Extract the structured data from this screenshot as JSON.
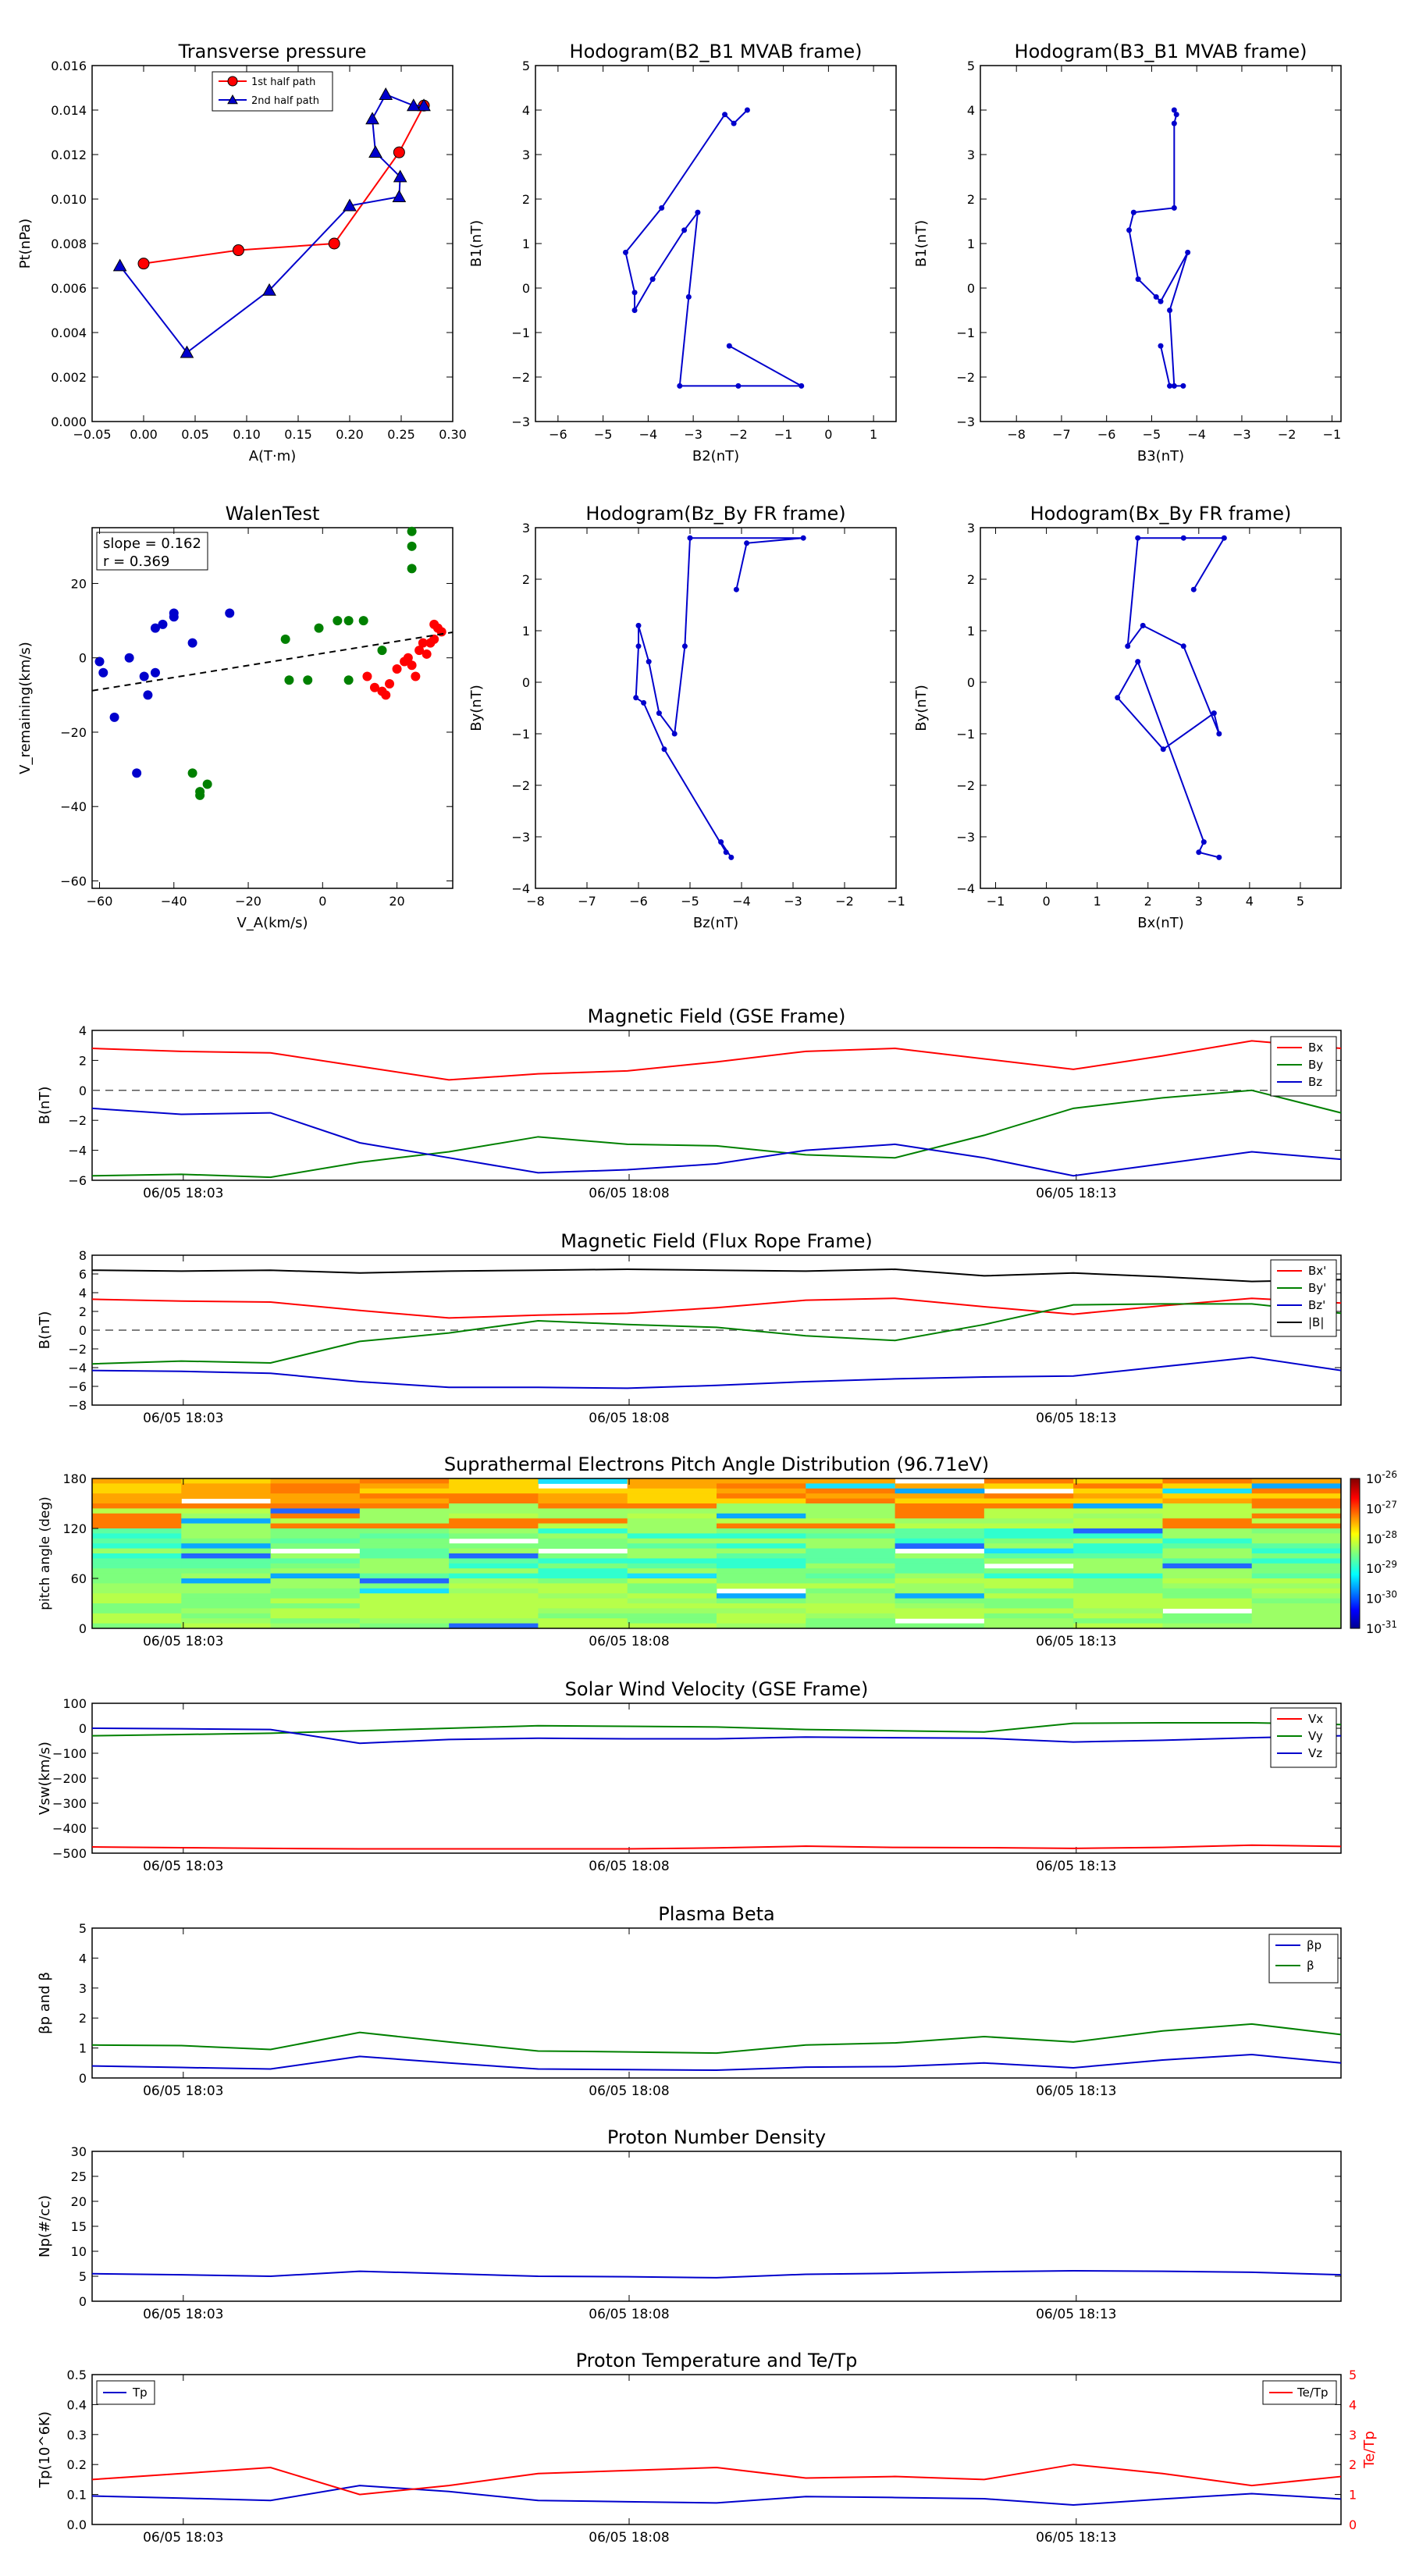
{
  "time_ticks": [
    "06/05 18:03",
    "06/05 18:08",
    "06/05 18:13"
  ],
  "colorbar": {
    "labels": [
      "10-26",
      "10-27",
      "10-28",
      "10-29",
      "10-30",
      "10-31"
    ],
    "display": [
      [
        "10",
        "-26"
      ],
      [
        "10",
        "-27"
      ],
      [
        "10",
        "-28"
      ],
      [
        "10",
        "-29"
      ],
      [
        "10",
        "-30"
      ],
      [
        "10",
        "-31"
      ]
    ]
  },
  "chart_data": [
    {
      "type": "line",
      "title": "Transverse pressure",
      "xlabel": "A(T·m)",
      "ylabel": "Pt(nPa)",
      "xlim": [
        -0.05,
        0.3
      ],
      "ylim": [
        0,
        0.016
      ],
      "xticks": [
        "−0.05",
        "0.00",
        "0.05",
        "0.10",
        "0.15",
        "0.20",
        "0.25",
        "0.30"
      ],
      "yticks": [
        "0.000",
        "0.002",
        "0.004",
        "0.006",
        "0.008",
        "0.010",
        "0.012",
        "0.014",
        "0.016"
      ],
      "legend": "top-center",
      "series": [
        {
          "name": "1st half path",
          "color": "#ff0000",
          "marker": "circle",
          "x": [
            0.0,
            0.092,
            0.185,
            0.248,
            0.272
          ],
          "y": [
            0.0071,
            0.0077,
            0.008,
            0.0121,
            0.0142
          ]
        },
        {
          "name": "2nd half path",
          "color": "#0000cc",
          "marker": "triangle",
          "x": [
            0.272,
            0.262,
            0.235,
            0.222,
            0.225,
            0.249,
            0.248,
            0.2,
            0.122,
            0.042,
            -0.023
          ],
          "y": [
            0.0142,
            0.0142,
            0.0147,
            0.0136,
            0.0121,
            0.011,
            0.0101,
            0.0097,
            0.0059,
            0.0031,
            0.007
          ]
        }
      ]
    },
    {
      "type": "line",
      "title": "Hodogram(B2_B1 MVAB frame)",
      "xlabel": "B2(nT)",
      "ylabel": "B1(nT)",
      "xlim": [
        -6.5,
        1.5
      ],
      "ylim": [
        -3,
        5
      ],
      "xticks": [
        "−6",
        "−5",
        "−4",
        "−3",
        "−2",
        "−1",
        "0",
        "1"
      ],
      "yticks": [
        "−3",
        "−2",
        "−1",
        "0",
        "1",
        "2",
        "3",
        "4",
        "5"
      ],
      "series": [
        {
          "name": "",
          "color": "#0000cc",
          "x": [
            -1.8,
            -2.1,
            -2.3,
            -3.7,
            -4.5,
            -4.3,
            -4.3,
            -3.9,
            -3.2,
            -2.9,
            -3.1,
            -3.3,
            -2.0,
            -0.6,
            -2.2
          ],
          "y": [
            4.0,
            3.7,
            3.9,
            1.8,
            0.8,
            -0.1,
            -0.5,
            0.2,
            1.3,
            1.7,
            -0.2,
            -2.2,
            -2.2,
            -2.2,
            -1.3
          ]
        }
      ]
    },
    {
      "type": "line",
      "title": "Hodogram(B3_B1 MVAB frame)",
      "xlabel": "B3(nT)",
      "ylabel": "B1(nT)",
      "xlim": [
        -8.8,
        -0.8
      ],
      "ylim": [
        -3,
        5
      ],
      "xticks": [
        "−8",
        "−7",
        "−6",
        "−5",
        "−4",
        "−3",
        "−2",
        "−1"
      ],
      "yticks": [
        "−3",
        "−2",
        "−1",
        "0",
        "1",
        "2",
        "3",
        "4",
        "5"
      ],
      "series": [
        {
          "name": "",
          "color": "#0000cc",
          "x": [
            -4.5,
            -4.45,
            -4.5,
            -4.5,
            -5.4,
            -5.5,
            -5.3,
            -4.9,
            -4.8,
            -4.2,
            -4.6,
            -4.5,
            -4.3,
            -4.6,
            -4.8
          ],
          "y": [
            4.0,
            3.9,
            3.7,
            1.8,
            1.7,
            1.3,
            0.2,
            -0.2,
            -0.3,
            0.8,
            -0.5,
            -2.2,
            -2.2,
            -2.2,
            -1.3
          ]
        }
      ]
    },
    {
      "type": "scatter",
      "title": "WalenTest",
      "xlabel": "V_A(km/s)",
      "ylabel": "V_remaining(km/s)",
      "xlim": [
        -62,
        35
      ],
      "ylim": [
        -62,
        35
      ],
      "xticks": [
        "−60",
        "−40",
        "−20",
        "0",
        "20"
      ],
      "yticks": [
        "−60",
        "−40",
        "−20",
        "0",
        "20"
      ],
      "annotation": [
        "slope = 0.162",
        "r = 0.369"
      ],
      "fit": {
        "slope": 0.162,
        "intercept": 1.2
      },
      "series": [
        {
          "name": "",
          "color": "#0000cc",
          "x": [
            -60,
            -59,
            -56,
            -52,
            -50,
            -48,
            -47,
            -45,
            -45,
            -43,
            -40,
            -40,
            -35,
            -25
          ],
          "y": [
            -1,
            -4,
            -16,
            0,
            -31,
            -5,
            -10,
            -4,
            8,
            9,
            12,
            11,
            4,
            12
          ]
        },
        {
          "name": "",
          "color": "#008000",
          "x": [
            -35,
            -33,
            -33,
            -31,
            -10,
            -9,
            -4,
            -1,
            4,
            7,
            7,
            11,
            16,
            24,
            24,
            24
          ],
          "y": [
            -31,
            -37,
            -36,
            -34,
            5,
            -6,
            -6,
            8,
            10,
            -6,
            10,
            10,
            2,
            34,
            30,
            24
          ]
        },
        {
          "name": "",
          "color": "#ff0000",
          "x": [
            12,
            14,
            16,
            17,
            18,
            20,
            22,
            23,
            24,
            25,
            26,
            27,
            28,
            29,
            30,
            30,
            31,
            32
          ],
          "y": [
            -5,
            -8,
            -9,
            -10,
            -7,
            -3,
            -1,
            0,
            -2,
            -5,
            2,
            4,
            1,
            4,
            5,
            9,
            8,
            7
          ]
        }
      ]
    },
    {
      "type": "line",
      "title": "Hodogram(Bz_By FR frame)",
      "xlabel": "Bz(nT)",
      "ylabel": "By(nT)",
      "xlim": [
        -8,
        -1
      ],
      "ylim": [
        -4,
        3
      ],
      "xticks": [
        "−8",
        "−7",
        "−6",
        "−5",
        "−4",
        "−3",
        "−2",
        "−1"
      ],
      "yticks": [
        "−4",
        "−3",
        "−2",
        "−1",
        "0",
        "1",
        "2",
        "3"
      ],
      "series": [
        {
          "name": "",
          "color": "#0000cc",
          "x": [
            -4.1,
            -3.9,
            -2.8,
            -5.0,
            -5.1,
            -5.3,
            -5.6,
            -5.8,
            -6.0,
            -6.0,
            -6.05,
            -5.9,
            -5.5,
            -4.3,
            -4.4,
            -4.2
          ],
          "y": [
            1.8,
            2.7,
            2.8,
            2.8,
            0.7,
            -1.0,
            -0.6,
            0.4,
            1.1,
            0.7,
            -0.3,
            -0.4,
            -1.3,
            -3.3,
            -3.1,
            -3.4
          ]
        }
      ]
    },
    {
      "type": "line",
      "title": "Hodogram(Bx_By FR frame)",
      "xlabel": "Bx(nT)",
      "ylabel": "By(nT)",
      "xlim": [
        -1.3,
        5.8
      ],
      "ylim": [
        -4,
        3
      ],
      "xticks": [
        "−1",
        "0",
        "1",
        "2",
        "3",
        "4",
        "5"
      ],
      "yticks": [
        "−4",
        "−3",
        "−2",
        "−1",
        "0",
        "1",
        "2",
        "3"
      ],
      "series": [
        {
          "name": "",
          "color": "#0000cc",
          "x": [
            2.9,
            3.5,
            2.7,
            1.8,
            1.6,
            1.9,
            2.7,
            3.4,
            3.3,
            2.3,
            1.4,
            1.8,
            3.1,
            3.0,
            3.4
          ],
          "y": [
            1.8,
            2.8,
            2.8,
            2.8,
            0.7,
            1.1,
            0.7,
            -1.0,
            -0.6,
            -1.3,
            -0.3,
            0.4,
            -3.1,
            -3.3,
            -3.4
          ]
        }
      ]
    },
    {
      "type": "line",
      "title": "Magnetic Field (GSE Frame)",
      "ylabel": "B(nT)",
      "ylim": [
        -6,
        4
      ],
      "yticks": [
        "−6",
        "−4",
        "−2",
        "0",
        "2",
        "4"
      ],
      "dashed_zero": true,
      "legend": "top-right",
      "series": [
        {
          "name": "Bx",
          "color": "#ff0000",
          "values": [
            2.8,
            2.6,
            2.5,
            1.6,
            0.7,
            1.1,
            1.3,
            1.9,
            2.6,
            2.8,
            2.1,
            1.4,
            2.3,
            3.3,
            2.8
          ]
        },
        {
          "name": "By",
          "color": "#008000",
          "values": [
            -5.7,
            -5.6,
            -5.8,
            -4.8,
            -4.1,
            -3.1,
            -3.6,
            -3.7,
            -4.3,
            -4.5,
            -3.0,
            -1.2,
            -0.5,
            0.0,
            -1.5
          ]
        },
        {
          "name": "Bz",
          "color": "#0000cc",
          "values": [
            -1.2,
            -1.6,
            -1.5,
            -3.5,
            -4.5,
            -5.5,
            -5.3,
            -4.9,
            -4.0,
            -3.6,
            -4.5,
            -5.7,
            -4.9,
            -4.1,
            -4.6
          ]
        }
      ]
    },
    {
      "type": "line",
      "title": "Magnetic Field (Flux Rope Frame)",
      "ylabel": "B(nT)",
      "ylim": [
        -8,
        8
      ],
      "yticks": [
        "−8",
        "−6",
        "−4",
        "−2",
        "0",
        "2",
        "4",
        "6",
        "8"
      ],
      "dashed_zero": true,
      "legend": "top-right",
      "series": [
        {
          "name": "Bx'",
          "color": "#ff0000",
          "values": [
            3.3,
            3.1,
            3.0,
            2.1,
            1.3,
            1.6,
            1.8,
            2.4,
            3.2,
            3.4,
            2.5,
            1.7,
            2.6,
            3.4,
            2.9
          ]
        },
        {
          "name": "By'",
          "color": "#008000",
          "values": [
            -3.6,
            -3.3,
            -3.5,
            -1.2,
            -0.3,
            1.0,
            0.6,
            0.3,
            -0.6,
            -1.1,
            0.6,
            2.7,
            2.8,
            2.8,
            1.8
          ]
        },
        {
          "name": "Bz'",
          "color": "#0000cc",
          "values": [
            -4.3,
            -4.4,
            -4.6,
            -5.5,
            -6.1,
            -6.1,
            -6.2,
            -5.9,
            -5.5,
            -5.2,
            -5.0,
            -4.9,
            -3.9,
            -2.9,
            -4.3
          ]
        },
        {
          "name": "|B|",
          "color": "#000000",
          "values": [
            6.4,
            6.3,
            6.4,
            6.1,
            6.3,
            6.4,
            6.5,
            6.4,
            6.3,
            6.5,
            5.8,
            6.1,
            5.7,
            5.2,
            5.4
          ]
        }
      ]
    },
    {
      "type": "heatmap",
      "title": "Suprathermal Electrons Pitch Angle Distribution (96.71eV)",
      "ylabel": "pitch angle (deg)",
      "ylim": [
        0,
        180
      ],
      "yticks": [
        "0",
        "60",
        "120",
        "180"
      ],
      "colorscale": "log",
      "color_range": [
        "1e-31",
        "1e-26"
      ]
    },
    {
      "type": "line",
      "title": "Solar Wind Velocity (GSE Frame)",
      "ylabel": "Vsw(km/s)",
      "ylim": [
        -500,
        100
      ],
      "yticks": [
        "−500",
        "−400",
        "−300",
        "−200",
        "−100",
        "0",
        "100"
      ],
      "legend": "top-right",
      "series": [
        {
          "name": "Vx",
          "color": "#ff0000",
          "values": [
            -475,
            -478,
            -481,
            -483,
            -483,
            -483,
            -483,
            -479,
            -472,
            -477,
            -478,
            -481,
            -477,
            -468,
            -473
          ]
        },
        {
          "name": "Vy",
          "color": "#008000",
          "values": [
            -30,
            -25,
            -20,
            -10,
            0,
            10,
            8,
            5,
            -5,
            -10,
            -15,
            20,
            22,
            22,
            15
          ]
        },
        {
          "name": "Vz",
          "color": "#0000cc",
          "values": [
            0,
            -2,
            -5,
            -60,
            -45,
            -40,
            -42,
            -42,
            -35,
            -38,
            -40,
            -55,
            -48,
            -38,
            -30
          ]
        }
      ]
    },
    {
      "type": "line",
      "title": "Plasma Beta",
      "ylabel": "βp and β",
      "ylim": [
        0,
        5
      ],
      "yticks": [
        "0",
        "1",
        "2",
        "3",
        "4",
        "5"
      ],
      "legend": "top-right",
      "series": [
        {
          "name": "βp",
          "color": "#0000cc",
          "values": [
            0.4,
            0.35,
            0.3,
            0.72,
            0.5,
            0.3,
            0.28,
            0.26,
            0.36,
            0.38,
            0.5,
            0.34,
            0.6,
            0.78,
            0.5
          ]
        },
        {
          "name": "β",
          "color": "#008000",
          "values": [
            1.1,
            1.08,
            0.95,
            1.52,
            1.2,
            0.9,
            0.87,
            0.83,
            1.1,
            1.17,
            1.38,
            1.2,
            1.57,
            1.8,
            1.45
          ]
        }
      ]
    },
    {
      "type": "line",
      "title": "Proton Number Density",
      "ylabel": "Np(#/cc)",
      "ylim": [
        0,
        30
      ],
      "yticks": [
        "0",
        "5",
        "10",
        "15",
        "20",
        "25",
        "30"
      ],
      "series": [
        {
          "name": "",
          "color": "#0000cc",
          "values": [
            5.5,
            5.3,
            5.0,
            6.0,
            5.5,
            5.0,
            4.9,
            4.7,
            5.4,
            5.6,
            5.9,
            6.1,
            6.0,
            5.8,
            5.3
          ]
        }
      ]
    },
    {
      "type": "line",
      "title": "Proton Temperature and Te/Tp",
      "ylabel": "Tp(10^6K)",
      "ylim": [
        0,
        0.5
      ],
      "yticks": [
        "0.0",
        "0.1",
        "0.2",
        "0.3",
        "0.4",
        "0.5"
      ],
      "y2label": "Te/Tp",
      "y2lim": [
        0,
        5
      ],
      "y2ticks": [
        "0",
        "1",
        "2",
        "3",
        "4",
        "5"
      ],
      "legend": "top-left and top-right",
      "series": [
        {
          "name": "Tp",
          "color": "#0000cc",
          "axis": "left",
          "values": [
            0.095,
            0.088,
            0.08,
            0.13,
            0.11,
            0.08,
            0.076,
            0.072,
            0.093,
            0.09,
            0.086,
            0.065,
            0.085,
            0.103,
            0.085
          ]
        },
        {
          "name": "Te/Tp",
          "color": "#ff0000",
          "axis": "right",
          "values": [
            1.5,
            1.7,
            1.9,
            1.0,
            1.3,
            1.7,
            1.8,
            1.9,
            1.55,
            1.6,
            1.5,
            2.0,
            1.7,
            1.3,
            1.6
          ]
        }
      ]
    }
  ]
}
